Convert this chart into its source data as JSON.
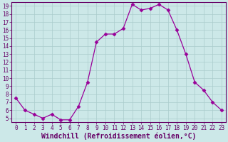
{
  "x": [
    0,
    1,
    2,
    3,
    4,
    5,
    6,
    7,
    8,
    9,
    10,
    11,
    12,
    13,
    14,
    15,
    16,
    17,
    18,
    19,
    20,
    21,
    22,
    23
  ],
  "y": [
    7.5,
    6.0,
    5.5,
    5.0,
    5.5,
    4.8,
    4.8,
    6.5,
    9.5,
    14.5,
    15.5,
    15.5,
    16.2,
    19.2,
    18.5,
    18.7,
    19.2,
    18.5,
    16.0,
    13.0,
    9.5,
    8.5,
    7.0,
    6.0
  ],
  "line_color": "#990099",
  "marker": "D",
  "marker_size": 2.5,
  "bg_color": "#cce8e8",
  "grid_color": "#aacccc",
  "xlabel": "Windchill (Refroidissement éolien,°C)",
  "xlabel_fontsize": 7,
  "ylim": [
    4.5,
    19.5
  ],
  "xlim": [
    -0.5,
    23.5
  ],
  "yticks": [
    5,
    6,
    7,
    8,
    9,
    10,
    11,
    12,
    13,
    14,
    15,
    16,
    17,
    18,
    19
  ],
  "xticks": [
    0,
    1,
    2,
    3,
    4,
    5,
    6,
    7,
    8,
    9,
    10,
    11,
    12,
    13,
    14,
    15,
    16,
    17,
    18,
    19,
    20,
    21,
    22,
    23
  ],
  "tick_fontsize": 5.5,
  "tick_color": "#660066",
  "spine_color": "#660066",
  "linewidth": 0.9
}
